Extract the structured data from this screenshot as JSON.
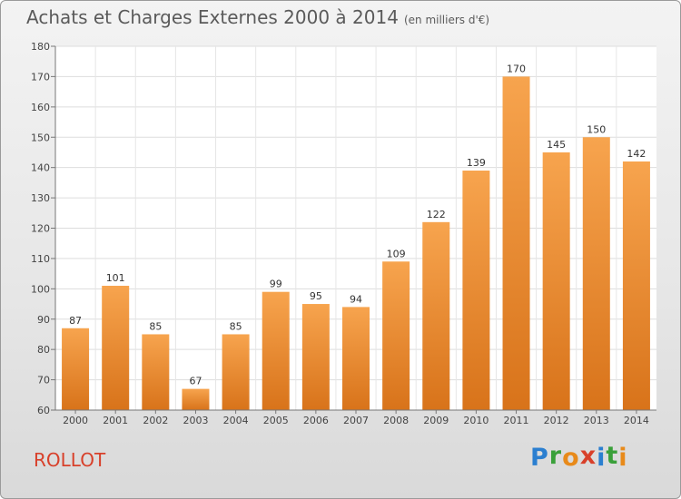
{
  "header": {
    "title": "Achats et Charges Externes 2000 à 2014",
    "subtitle": "(en milliers d'€)"
  },
  "footer": {
    "commune": "ROLLOT",
    "logo_letters": [
      "P",
      "r",
      "o",
      "x",
      "i",
      "t",
      "i"
    ],
    "logo_colors": [
      "#2b7fd0",
      "#3aa03a",
      "#e88a1a",
      "#d8402a",
      "#2b7fd0",
      "#3aa03a",
      "#e88a1a"
    ]
  },
  "chart_data": {
    "type": "bar",
    "categories": [
      "2000",
      "2001",
      "2002",
      "2003",
      "2004",
      "2005",
      "2006",
      "2007",
      "2008",
      "2009",
      "2010",
      "2011",
      "2012",
      "2013",
      "2014"
    ],
    "values": [
      87,
      101,
      85,
      67,
      85,
      99,
      95,
      94,
      109,
      122,
      139,
      170,
      145,
      150,
      142
    ],
    "ylim": [
      60,
      180
    ],
    "yticks": [
      60,
      70,
      80,
      90,
      100,
      110,
      120,
      130,
      140,
      150,
      160,
      170,
      180
    ],
    "grid": true,
    "bar_color_top": "#f7a44e",
    "bar_color_bottom": "#d8731a"
  }
}
